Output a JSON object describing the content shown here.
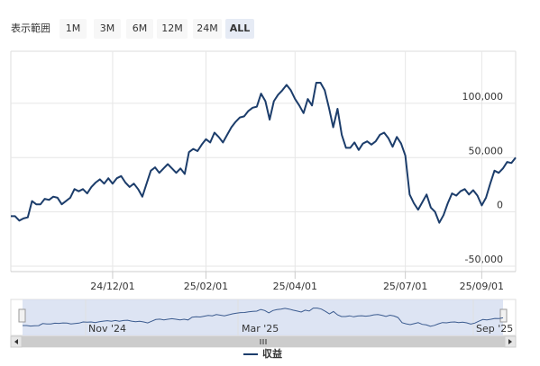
{
  "range_selector": {
    "label": "表示範囲",
    "buttons": [
      {
        "label": "1M",
        "state": "normal"
      },
      {
        "label": "3M",
        "state": "normal"
      },
      {
        "label": "6M",
        "state": "normal"
      },
      {
        "label": "12M",
        "state": "normal"
      },
      {
        "label": "24M",
        "state": "disabled"
      },
      {
        "label": "ALL",
        "state": "selected"
      }
    ]
  },
  "chart_data": {
    "type": "line",
    "categories": [
      null,
      null,
      null,
      null,
      null,
      null,
      null,
      null,
      null,
      null,
      null,
      null,
      null,
      null,
      null,
      null,
      null,
      null,
      null,
      null,
      null,
      null,
      null,
      null,
      "24/12/01",
      null,
      null,
      null,
      null,
      null,
      null,
      null,
      null,
      null,
      null,
      null,
      null,
      null,
      null,
      null,
      null,
      null,
      null,
      null,
      null,
      null,
      "25/02/01",
      null,
      null,
      null,
      null,
      null,
      null,
      null,
      null,
      null,
      null,
      null,
      null,
      null,
      null,
      null,
      null,
      null,
      null,
      null,
      null,
      "25/04/01",
      null,
      null,
      null,
      null,
      null,
      null,
      null,
      null,
      null,
      null,
      null,
      null,
      null,
      null,
      null,
      null,
      null,
      null,
      null,
      null,
      null,
      null,
      null,
      null,
      null,
      "25/07/01",
      null,
      null,
      null,
      null,
      null,
      null,
      null,
      null,
      null,
      null,
      null,
      null,
      null,
      null,
      null,
      null,
      null,
      "25/09/01",
      null,
      null,
      null,
      null,
      null,
      null,
      null,
      null
    ],
    "series": [
      {
        "name": "収益",
        "color": "#1c3d6b",
        "values": [
          -4000,
          -4000,
          -8000,
          -6000,
          -5000,
          10000,
          7000,
          7000,
          12000,
          11000,
          14000,
          13000,
          7000,
          10000,
          13000,
          21000,
          19000,
          21000,
          17000,
          23000,
          27000,
          30000,
          26000,
          31000,
          26000,
          31000,
          33000,
          27000,
          23000,
          26000,
          21000,
          14000,
          26000,
          38000,
          41000,
          36000,
          40000,
          44000,
          40000,
          36000,
          40000,
          35000,
          55000,
          58000,
          56000,
          62000,
          67000,
          64000,
          73000,
          69000,
          64000,
          71000,
          78000,
          83000,
          87000,
          88000,
          93000,
          96000,
          97000,
          109000,
          102000,
          85000,
          102000,
          108000,
          112000,
          117000,
          112000,
          104000,
          98000,
          91000,
          104000,
          98000,
          119000,
          119000,
          112000,
          96000,
          78000,
          95000,
          71000,
          59000,
          59000,
          64000,
          57000,
          63000,
          65000,
          62000,
          65000,
          71000,
          73000,
          68000,
          60000,
          69000,
          63000,
          52000,
          16000,
          8000,
          2000,
          9000,
          16000,
          4000,
          0,
          -10000,
          -3000,
          8000,
          17000,
          15000,
          19000,
          21000,
          16000,
          20000,
          15000,
          6000,
          13000,
          26000,
          38000,
          36000,
          40000,
          46000,
          45000,
          50000
        ]
      }
    ],
    "ylim": [
      -55000,
      148000
    ],
    "yticks": [
      {
        "value": -50000,
        "label": "-50,000"
      },
      0,
      {
        "value": 50000,
        "label": "50,000"
      },
      {
        "value": 100000,
        "label": "100,000"
      }
    ],
    "grid": true,
    "navigator": {
      "labels": [
        "Nov '24",
        "Mar '25",
        "Sep '25"
      ]
    }
  }
}
